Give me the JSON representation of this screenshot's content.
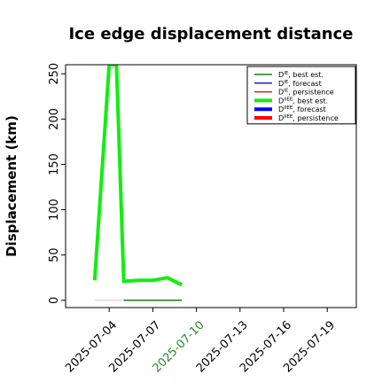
{
  "chart_data": {
    "type": "line",
    "title": "Ice edge displacement distance",
    "xlabel": "",
    "ylabel": "Displacement (km)",
    "x_range": [
      "2025-07-01",
      "2025-07-21"
    ],
    "ylim": [
      -8,
      260
    ],
    "y_ticks": [
      0,
      50,
      100,
      150,
      200,
      250
    ],
    "x_ticks": [
      {
        "label": "2025-07-04",
        "value": "2025-07-04",
        "color": "#000000"
      },
      {
        "label": "2025-07-07",
        "value": "2025-07-07",
        "color": "#000000"
      },
      {
        "label": "2025-07-10",
        "value": "2025-07-10",
        "color": "#2a8a2a"
      },
      {
        "label": "2025-07-13",
        "value": "2025-07-13",
        "color": "#000000"
      },
      {
        "label": "2025-07-16",
        "value": "2025-07-16",
        "color": "#000000"
      },
      {
        "label": "2025-07-19",
        "value": "2025-07-19",
        "color": "#000000"
      }
    ],
    "legend_position": "top-right",
    "grid": false,
    "series": [
      {
        "name": "D^IE, best est.",
        "legend_main": "D",
        "legend_sup": "IE",
        "legend_rest": ", best est.",
        "color": "#1a7a1a",
        "width": 1.5,
        "x": [
          "2025-07-05",
          "2025-07-07",
          "2025-07-09"
        ],
        "y": [
          0,
          0,
          0
        ]
      },
      {
        "name": "D^IE, forecast",
        "legend_main": "D",
        "legend_sup": "IE",
        "legend_rest": ", forecast",
        "color": "#2222cc",
        "width": 1.5,
        "x": [],
        "y": []
      },
      {
        "name": "D^IE, persistence",
        "legend_main": "D",
        "legend_sup": "IE",
        "legend_rest": ", persistence",
        "color": "#cc2222",
        "width": 1.5,
        "x": [],
        "y": []
      },
      {
        "name": "D^IIEE, best est.",
        "legend_main": "D",
        "legend_sup": "IIEE",
        "legend_rest": ", best est.",
        "color": "#11ee11",
        "width": 4,
        "x": [
          "2025-07-03",
          "2025-07-04",
          "2025-07-04T12:00",
          "2025-07-05",
          "2025-07-06",
          "2025-07-07",
          "2025-07-08",
          "2025-07-09"
        ],
        "y": [
          22,
          260,
          260,
          21,
          22,
          22,
          25,
          17
        ]
      },
      {
        "name": "D^IIEE, forecast",
        "legend_main": "D",
        "legend_sup": "IIEE",
        "legend_rest": ", forecast",
        "color": "#0000ff",
        "width": 4,
        "x": [],
        "y": []
      },
      {
        "name": "D^IIEE, persistence",
        "legend_main": "D",
        "legend_sup": "IIEE",
        "legend_rest": ", persistence",
        "color": "#ff0000",
        "width": 4,
        "x": [],
        "y": []
      }
    ],
    "extra_lines": [
      {
        "color": "#c8c8c8",
        "width": 1,
        "x": [
          "2025-07-03",
          "2025-07-05"
        ],
        "y": [
          0,
          0
        ]
      }
    ]
  }
}
